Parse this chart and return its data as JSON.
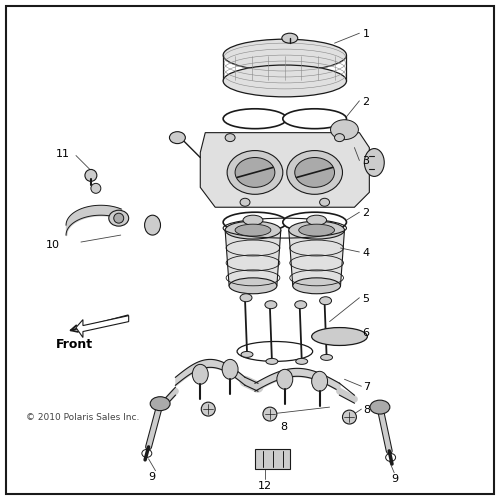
{
  "bg_color": "#ffffff",
  "border_color": "#000000",
  "fig_width": 5.0,
  "fig_height": 5.0,
  "dpi": 100,
  "copyright_text": "© 2010 Polaris Sales Inc.",
  "front_label": "Front",
  "lc": "#1a1a1a",
  "fc_light": "#e0e0e0",
  "fc_mid": "#cccccc",
  "fc_dark": "#aaaaaa"
}
